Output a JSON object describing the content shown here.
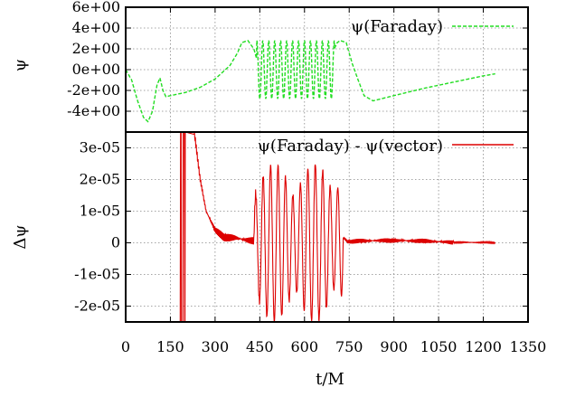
{
  "chart_data": [
    {
      "type": "line",
      "panel": "top",
      "ylabel": "ψ",
      "xlim": [
        0,
        1350
      ],
      "ylim": [
        -6,
        6
      ],
      "y_ticks": [
        "6e+00",
        "4e+00",
        "2e+00",
        "0e+00",
        "-2e+00",
        "-4e+00"
      ],
      "y_tick_values": [
        6,
        4,
        2,
        0,
        -2,
        -4
      ],
      "grid": true,
      "legend_position": "top-right",
      "series": [
        {
          "name": "ψ(Faraday)",
          "color": "#22dd22",
          "style": "dashed",
          "x": [
            0,
            20,
            40,
            60,
            75,
            90,
            105,
            115,
            125,
            135,
            150,
            200,
            250,
            300,
            350,
            375,
            390,
            410,
            430,
            440,
            700,
            710,
            720,
            740,
            760,
            780,
            800,
            830,
            900,
            1000,
            1100,
            1200,
            1240
          ],
          "values": [
            0.0,
            -1.0,
            -3.0,
            -4.6,
            -5.0,
            -4.0,
            -1.5,
            -0.8,
            -2.0,
            -2.6,
            -2.5,
            -2.2,
            -1.7,
            -0.9,
            0.4,
            1.6,
            2.6,
            2.8,
            2.0,
            1.0,
            2.0,
            2.6,
            2.8,
            2.6,
            0.6,
            -1.0,
            -2.5,
            -3.0,
            -2.5,
            -1.8,
            -1.2,
            -0.6,
            -0.4
          ],
          "oscillation": {
            "x_start": 440,
            "x_end": 700,
            "amplitude": 2.8,
            "cycles": 13
          }
        }
      ]
    },
    {
      "type": "line",
      "panel": "bottom",
      "ylabel": "Δψ",
      "xlabel": "t/M",
      "xlim": [
        0,
        1350
      ],
      "ylim": [
        -2.5e-05,
        3.5e-05
      ],
      "x_ticks": [
        "0",
        "150",
        "300",
        "450",
        "600",
        "750",
        "900",
        "1050",
        "1200",
        "1350"
      ],
      "x_tick_values": [
        0,
        150,
        300,
        450,
        600,
        750,
        900,
        1050,
        1200,
        1350
      ],
      "y_ticks": [
        "3e-05",
        "2e-05",
        "1e-05",
        "0",
        "-1e-05",
        "-2e-05"
      ],
      "y_tick_values": [
        3e-05,
        2e-05,
        1e-05,
        0,
        -1e-05,
        -2e-05
      ],
      "grid": true,
      "legend_position": "top-right",
      "series": [
        {
          "name": "ψ(Faraday) - ψ(vector)",
          "color": "#dd0000",
          "style": "solid",
          "x": [
            180,
            200,
            230,
            250,
            270,
            300,
            330,
            370,
            400,
            425,
            440,
            700,
            720,
            745,
            800,
            900,
            1000,
            1100,
            1240
          ],
          "values": [
            -2.5e-05,
            3.5e-05,
            3.5e-05,
            2e-05,
            1e-05,
            4e-06,
            2e-06,
            1.5e-06,
            1e-06,
            5e-07,
            0.0,
            0.0,
            2.5e-06,
            4e-07,
            6e-07,
            8e-07,
            5e-07,
            2e-07,
            0.0
          ],
          "oscillation": {
            "x_start": 430,
            "x_end": 730,
            "peak": 2.5e-05,
            "cycles": 12
          }
        }
      ]
    }
  ]
}
